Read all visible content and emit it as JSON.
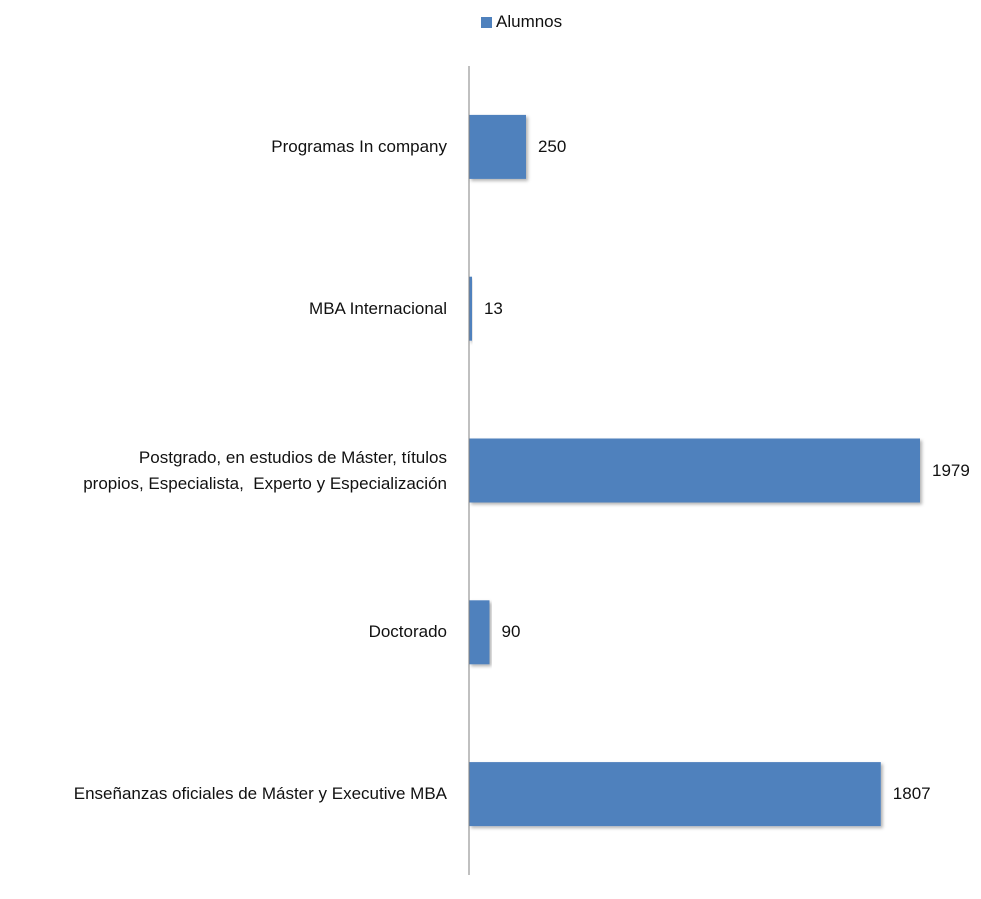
{
  "chart_data": {
    "type": "bar",
    "orientation": "horizontal",
    "categories": [
      [
        "Programas In company"
      ],
      [
        "MBA Internacional"
      ],
      [
        "Postgrado, en estudios de Máster, títulos",
        "propios, Especialista,  Experto y Especialización"
      ],
      [
        "Doctorado"
      ],
      [
        "Enseñanzas oficiales de Máster y Executive MBA"
      ]
    ],
    "series": [
      {
        "name": "Alumnos",
        "values": [
          250,
          13,
          1979,
          90,
          1807
        ],
        "color": "#4F81BD"
      }
    ],
    "data_labels": [
      "250",
      "13",
      "1979",
      "90",
      "1807"
    ],
    "xlim": [
      0,
      1979
    ],
    "grid": false,
    "legend_position": "top",
    "axis_color": "#808080"
  }
}
